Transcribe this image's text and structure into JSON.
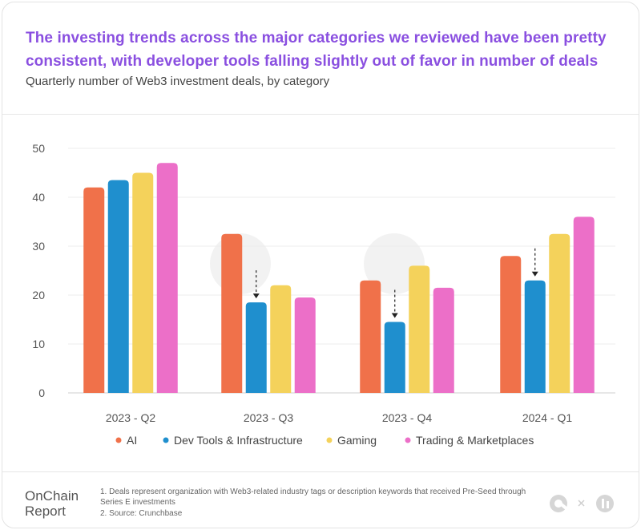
{
  "header": {
    "title": "The investing trends across the major categories we reviewed have been pretty consistent, with developer tools falling slightly out of favor in number of deals",
    "subtitle": "Quarterly number of Web3 investment deals, by category"
  },
  "chart_data": {
    "type": "bar",
    "categories": [
      "2023 - Q2",
      "2023 - Q3",
      "2023 - Q4",
      "2024 - Q1"
    ],
    "series": [
      {
        "name": "AI",
        "color": "#f0714a",
        "values": [
          42,
          32.5,
          23,
          28
        ]
      },
      {
        "name": "Dev Tools & Infrastructure",
        "color": "#1f8fce",
        "values": [
          43.5,
          18.5,
          14.5,
          23
        ]
      },
      {
        "name": "Gaming",
        "color": "#f4d25b",
        "values": [
          45,
          22,
          26,
          32.5
        ]
      },
      {
        "name": "Trading & Marketplaces",
        "color": "#ec6fc8",
        "values": [
          47,
          19.5,
          21.5,
          36
        ]
      }
    ],
    "yticks": [
      0,
      10,
      20,
      30,
      40,
      50
    ],
    "ylim": [
      0,
      50
    ],
    "grid": true,
    "legend": "bottom",
    "annotations": [
      {
        "type": "downward-arrow",
        "category": "2023 - Q3",
        "series": "Dev Tools & Infrastructure"
      },
      {
        "type": "downward-arrow",
        "category": "2023 - Q4",
        "series": "Dev Tools & Infrastructure"
      },
      {
        "type": "downward-arrow",
        "category": "2024 - Q1",
        "series": "Dev Tools & Infrastructure"
      }
    ]
  },
  "footer": {
    "brand_line1": "OnChain",
    "brand_line2": "Report",
    "notes": [
      "1. Deals represent organization with Web3-related industry tags or description keywords that received Pre-Seed through Series E investments",
      "2. Source: Crunchbase"
    ]
  },
  "icons": [
    "onchain-logo-icon",
    "times-icon",
    "crunchbase-logo-icon"
  ]
}
